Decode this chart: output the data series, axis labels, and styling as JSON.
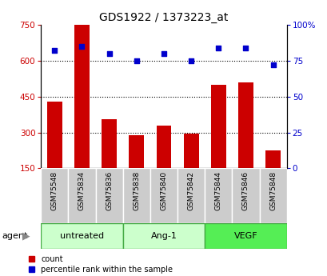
{
  "title": "GDS1922 / 1373223_at",
  "categories": [
    "GSM75548",
    "GSM75834",
    "GSM75836",
    "GSM75838",
    "GSM75840",
    "GSM75842",
    "GSM75844",
    "GSM75846",
    "GSM75848"
  ],
  "bar_values": [
    430,
    750,
    355,
    290,
    330,
    295,
    500,
    510,
    225
  ],
  "scatter_values": [
    82,
    85,
    80,
    75,
    80,
    75,
    84,
    84,
    72
  ],
  "bar_color": "#cc0000",
  "scatter_color": "#0000cc",
  "ylim_left": [
    150,
    750
  ],
  "ylim_right": [
    0,
    100
  ],
  "yticks_left": [
    150,
    300,
    450,
    600,
    750
  ],
  "yticks_right": [
    0,
    25,
    50,
    75,
    100
  ],
  "ytick_labels_right": [
    "0",
    "25",
    "50",
    "75",
    "100%"
  ],
  "hgrid_at": [
    300,
    450,
    600
  ],
  "groups": [
    {
      "label": "untreated",
      "start": 0,
      "end": 2,
      "color": "#ccffcc",
      "border": "#44aa44"
    },
    {
      "label": "Ang-1",
      "start": 3,
      "end": 5,
      "color": "#ccffcc",
      "border": "#44aa44"
    },
    {
      "label": "VEGF",
      "start": 6,
      "end": 8,
      "color": "#55ee55",
      "border": "#44aa44"
    }
  ],
  "sample_label_bg": "#cccccc",
  "sample_label_divider": "#ffffff",
  "bar_width": 0.55,
  "title_fontsize": 10,
  "tick_fontsize": 7.5,
  "label_fontsize": 6.5,
  "group_fontsize": 8,
  "legend_fontsize": 7,
  "legend_count_label": "count",
  "legend_scatter_label": "percentile rank within the sample",
  "agent_label": "agent"
}
